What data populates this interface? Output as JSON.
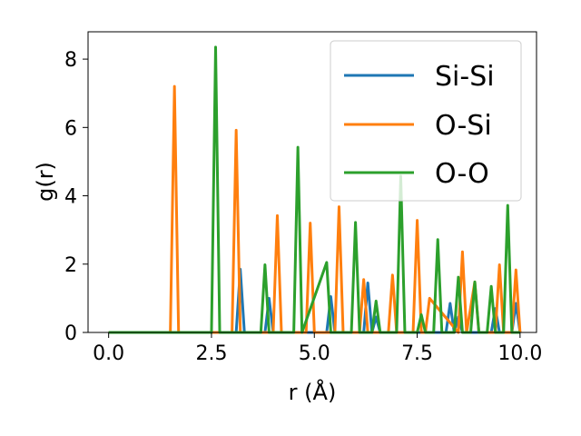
{
  "chart_data": {
    "type": "line",
    "title": "",
    "xlabel": "r (Å)",
    "ylabel": "g(r)",
    "xlim": [
      -0.5,
      10.4
    ],
    "ylim": [
      0,
      8.8
    ],
    "xticks": [
      0.0,
      2.5,
      5.0,
      7.5,
      10.0
    ],
    "xtick_labels": [
      "0.0",
      "2.5",
      "5.0",
      "7.5",
      "10.0"
    ],
    "yticks": [
      0,
      2,
      4,
      6,
      8
    ],
    "ytick_labels": [
      "0",
      "2",
      "4",
      "6",
      "8"
    ],
    "grid": false,
    "legend_position": "top-right",
    "series": [
      {
        "name": "Si-Si",
        "color": "#1f77b4",
        "x": [
          0.0,
          3.1,
          3.2,
          3.3,
          3.8,
          3.9,
          4.0,
          5.3,
          5.4,
          5.5,
          6.2,
          6.3,
          6.4,
          6.5,
          6.6,
          8.2,
          8.3,
          8.4,
          8.5,
          8.6,
          9.3,
          9.4,
          9.5,
          9.8,
          9.9,
          10.0
        ],
        "y": [
          0.0,
          0.0,
          1.85,
          0.0,
          0.0,
          1.0,
          0.0,
          0.0,
          1.05,
          0.0,
          0.0,
          1.45,
          0.0,
          0.45,
          0.0,
          0.0,
          0.85,
          0.0,
          0.45,
          0.0,
          0.0,
          0.7,
          0.0,
          0.0,
          0.85,
          0.0
        ]
      },
      {
        "name": "O-Si",
        "color": "#ff7f0e",
        "x": [
          0.0,
          1.5,
          1.6,
          1.7,
          3.0,
          3.1,
          3.2,
          4.0,
          4.1,
          4.2,
          4.8,
          4.9,
          5.0,
          5.5,
          5.6,
          5.7,
          6.1,
          6.2,
          6.3,
          6.8,
          6.9,
          7.0,
          7.4,
          7.5,
          7.6,
          7.7,
          7.8,
          8.5,
          8.6,
          8.7,
          8.9,
          9.0,
          9.4,
          9.5,
          9.6,
          9.8,
          9.9,
          10.0
        ],
        "y": [
          0.0,
          0.0,
          7.2,
          0.0,
          0.0,
          5.92,
          0.0,
          0.0,
          3.42,
          0.0,
          0.0,
          3.2,
          0.0,
          0.0,
          3.68,
          0.0,
          0.0,
          1.55,
          0.0,
          0.0,
          1.68,
          0.0,
          0.0,
          3.28,
          0.0,
          0.0,
          1.0,
          0.0,
          2.36,
          0.0,
          1.48,
          0.0,
          0.0,
          1.98,
          0.0,
          0.0,
          1.83,
          0.0
        ]
      },
      {
        "name": "O-O",
        "color": "#2ca02c",
        "x": [
          0.0,
          2.5,
          2.6,
          2.7,
          3.7,
          3.8,
          3.9,
          4.5,
          4.6,
          4.7,
          5.3,
          5.4,
          5.9,
          6.0,
          6.1,
          6.4,
          6.5,
          6.6,
          7.0,
          7.1,
          7.2,
          7.5,
          7.6,
          7.7,
          7.9,
          8.0,
          8.1,
          8.4,
          8.5,
          8.6,
          8.8,
          8.9,
          9.0,
          9.2,
          9.3,
          9.4,
          9.6,
          9.7,
          9.8,
          9.9,
          10.0
        ],
        "y": [
          0.0,
          0.0,
          8.35,
          0.0,
          0.0,
          1.98,
          0.0,
          0.0,
          5.42,
          0.0,
          2.05,
          0.0,
          0.0,
          3.22,
          0.0,
          0.0,
          0.92,
          0.0,
          0.0,
          4.58,
          0.0,
          0.0,
          0.52,
          0.0,
          0.0,
          2.72,
          0.0,
          0.0,
          1.62,
          0.0,
          0.0,
          1.48,
          0.0,
          0.0,
          1.35,
          0.0,
          0.0,
          3.72,
          0.0,
          0.0,
          0.0
        ]
      }
    ]
  }
}
